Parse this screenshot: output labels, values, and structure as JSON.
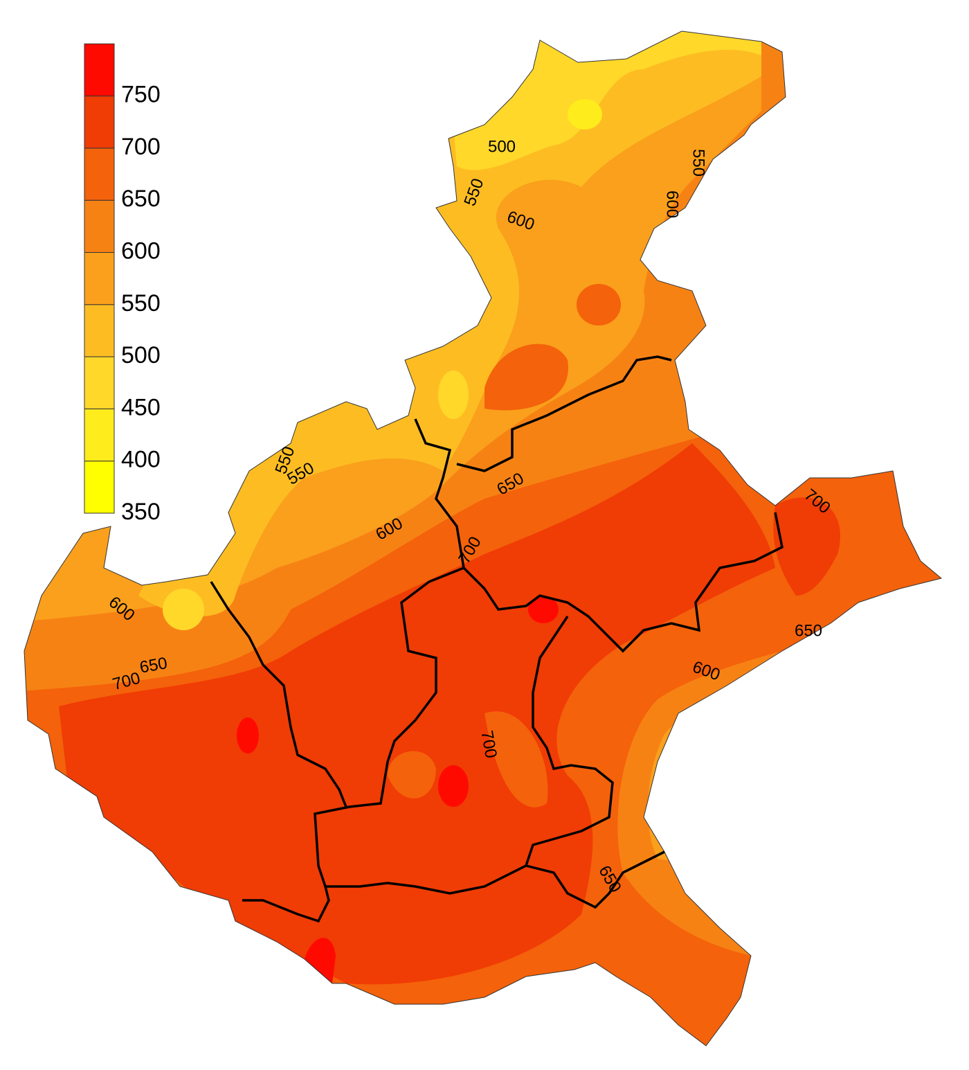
{
  "legend": {
    "levels": [
      350,
      400,
      450,
      500,
      550,
      600,
      650,
      700,
      750
    ],
    "colors": [
      "#ffff00",
      "#ffec1c",
      "#ffd82a",
      "#fdbd22",
      "#faa01c",
      "#f78214",
      "#f4620b",
      "#f03c05",
      "#ff0a00"
    ]
  },
  "contour_labels": [
    "500",
    "550",
    "600",
    "550",
    "600",
    "550",
    "550",
    "600",
    "650",
    "700",
    "700",
    "600",
    "650",
    "700",
    "700",
    "650",
    "600",
    "650"
  ]
}
